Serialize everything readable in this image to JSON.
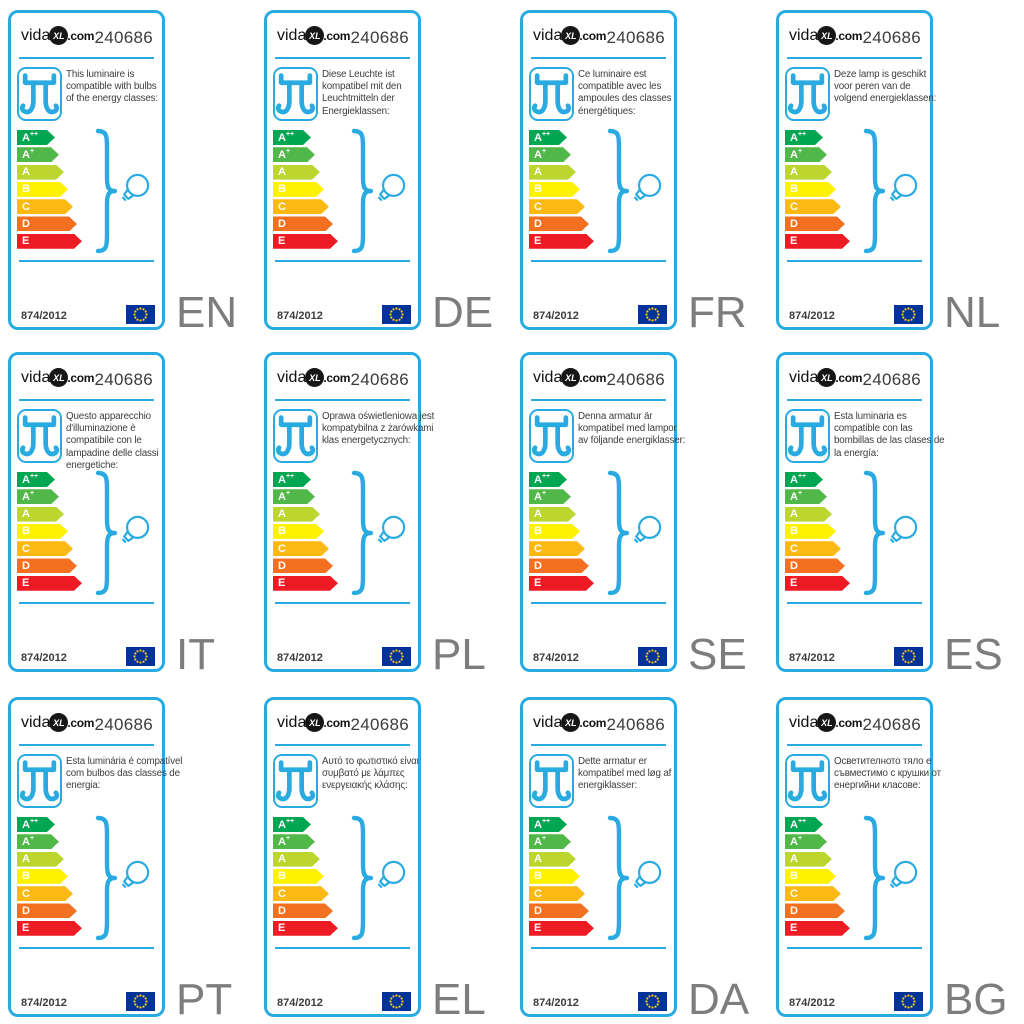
{
  "colors": {
    "accent": "#29ABE2",
    "text_dark": "#3C3C3B",
    "lang_gray": "#7D7D7D",
    "eu_blue": "#003399",
    "eu_yellow": "#FFCC00",
    "bar_text": "#FFFFFF"
  },
  "logo": {
    "prefix": "vida",
    "badge": "XL",
    "suffix": ".com"
  },
  "header": {
    "product_number": "240686"
  },
  "footer": {
    "regulation": "874/2012"
  },
  "energy_classes": [
    {
      "letter": "A",
      "sup": "++",
      "color": "#00A651"
    },
    {
      "letter": "A",
      "sup": "+",
      "color": "#50B848"
    },
    {
      "letter": "A",
      "sup": "",
      "color": "#BDD62F"
    },
    {
      "letter": "B",
      "sup": "",
      "color": "#FFF200"
    },
    {
      "letter": "C",
      "sup": "",
      "color": "#FDB913"
    },
    {
      "letter": "D",
      "sup": "",
      "color": "#F37021"
    },
    {
      "letter": "E",
      "sup": "",
      "color": "#ED1C24"
    }
  ],
  "labels": [
    {
      "code": "EN",
      "description": "This luminaire is\ncompatible with bulbs\nof the energy classes:"
    },
    {
      "code": "DE",
      "description": "Diese Leuchte ist\nkompatibel mit den\nLeuchtmitteln der\nEnergieklassen:"
    },
    {
      "code": "FR",
      "description": "Ce luminaire est\ncompatible avec les\nampoules des classes\nénergétiques:"
    },
    {
      "code": "NL",
      "description": "Deze lamp is geschikt\nvoor peren van de\nvolgend energieklassen:"
    },
    {
      "code": "IT",
      "description": "Questo apparecchio\nd'illuminazione è\ncompatibile con le\nlampadine delle classi\nenergetiche:"
    },
    {
      "code": "PL",
      "description": "Oprawa oświetleniowa jest\nkompatybilna z żarówkami\nklas energetycznych:"
    },
    {
      "code": "SE",
      "description": "Denna armatur är\nkompatibel med lampor\nav följande energiklasser:"
    },
    {
      "code": "ES",
      "description": "Esta luminaria es\ncompatible con las\nbombillas de las clases de\nla energía:"
    },
    {
      "code": "PT",
      "description": "Esta luminária é compatível\ncom bulbos das classes de\nenergia:"
    },
    {
      "code": "EL",
      "description": "Αυτό το φωτιστικό είναι\nσυμβατό με λάμπες\nενεργειακής κλάσης:"
    },
    {
      "code": "DA",
      "description": "Dette armatur er\nkompatibel med løg af\nenergiklasser:"
    },
    {
      "code": "BG",
      "description": "Осветителното тяло е\nсъвместимо с крушки от\nенергийни класове:"
    }
  ]
}
